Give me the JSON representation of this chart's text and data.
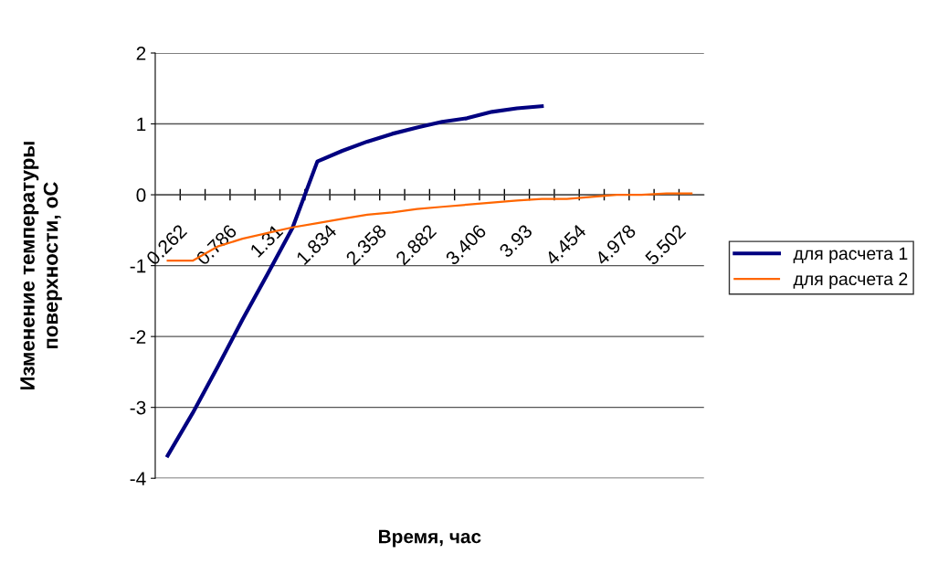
{
  "chart_data": {
    "type": "line",
    "xlabel": "Время, час",
    "ylabel": "Изменение температуры\nповерхности, оС",
    "categories": [
      "0.262",
      null,
      "0.786",
      null,
      "1.31",
      null,
      "1.834",
      null,
      "2.358",
      null,
      "2.882",
      null,
      "3.406",
      null,
      "3.93",
      null,
      "4.454",
      null,
      "4.978",
      null,
      "5.502",
      null
    ],
    "series": [
      {
        "name": "для расчета 1",
        "color": "#000080",
        "values": [
          -3.68,
          -3.08,
          -2.43,
          -1.76,
          -1.12,
          -0.47,
          0.47,
          0.62,
          0.75,
          0.86,
          0.95,
          1.03,
          1.08,
          1.17,
          1.22,
          1.25,
          null,
          null,
          null,
          null,
          null,
          null
        ]
      },
      {
        "name": "для расчета 2",
        "color": "#ff6600",
        "values": [
          -0.93,
          -0.93,
          -0.73,
          -0.62,
          -0.54,
          -0.46,
          -0.4,
          -0.34,
          -0.28,
          -0.25,
          -0.2,
          -0.17,
          -0.14,
          -0.11,
          -0.08,
          -0.06,
          -0.06,
          -0.03,
          0,
          0,
          0.02,
          0.02
        ]
      }
    ],
    "ylim": [
      -4,
      2
    ],
    "yticks": [
      -4,
      -3,
      -2,
      -1,
      0,
      1,
      2
    ],
    "grid": "y",
    "legend": "right",
    "marker": "none",
    "line_style": "solid"
  }
}
